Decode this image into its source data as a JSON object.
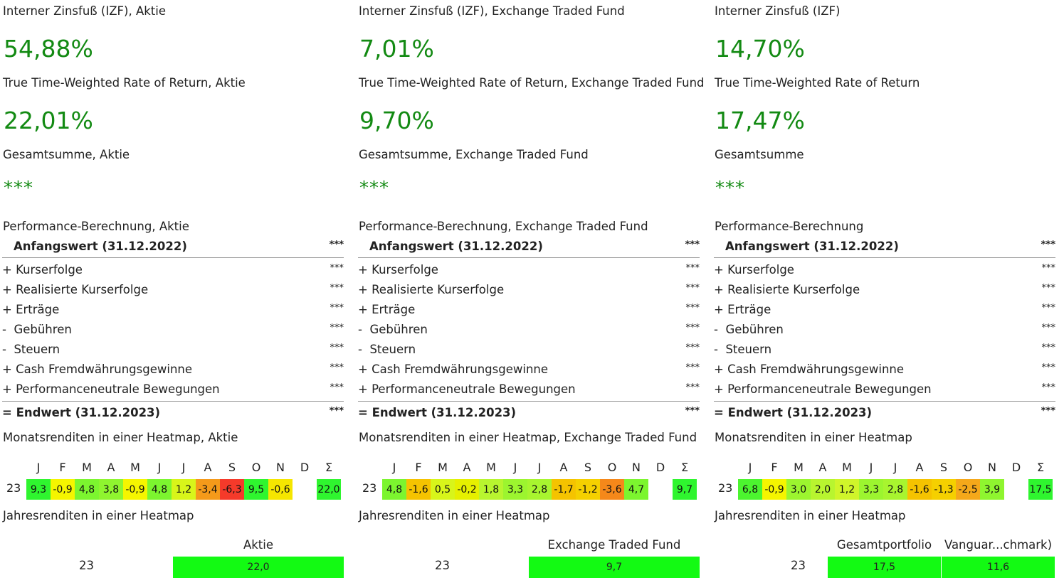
{
  "months": [
    "J",
    "F",
    "M",
    "A",
    "M",
    "J",
    "J",
    "A",
    "S",
    "O",
    "N",
    "D",
    "Σ"
  ],
  "panels": [
    {
      "irr_label": "Interner Zinsfuß (IZF), Aktie",
      "irr_value": "54,88%",
      "ttwror_label": "True Time-Weighted Rate of Return, Aktie",
      "ttwror_value": "22,01%",
      "total_label": "Gesamtsumme, Aktie",
      "total_value": "***",
      "perf_title": "Performance-Berechnung, Aktie",
      "start_label": "Anfangswert (31.12.2022)",
      "start_value": "***",
      "rows": [
        {
          "label": "+ Kurserfolge",
          "value": "***"
        },
        {
          "label": "+ Realisierte Kurserfolge",
          "value": "***"
        },
        {
          "label": "+ Erträge",
          "value": "***"
        },
        {
          "label": "-  Gebühren",
          "value": "***"
        },
        {
          "label": "-  Steuern",
          "value": "***"
        },
        {
          "label": "+ Cash Fremdwährungsgewinne",
          "value": "***"
        },
        {
          "label": "+ Performanceneutrale Bewegungen",
          "value": "***"
        }
      ],
      "end_label": "= Endwert (31.12.2023)",
      "end_value": "***",
      "heatmap_title": "Monatsrenditen in einer Heatmap, Aktie",
      "heatmap_year": "23",
      "heatmap_values": [
        "9,3",
        "-0,9",
        "4,8",
        "3,8",
        "-0,9",
        "4,8",
        "1,2",
        "-3,4",
        "-6,3",
        "9,5",
        "-0,6",
        "",
        "22,0"
      ],
      "heatmap_colors": [
        "#2ff52f",
        "#f5f500",
        "#7cf52f",
        "#8ff52f",
        "#f5f500",
        "#7cf52f",
        "#d8f51a",
        "#f59a1a",
        "#f53a2a",
        "#2ff52f",
        "#f5e600",
        "",
        "#2ff52f"
      ],
      "yearly_title": "Jahresrenditen in einer Heatmap",
      "yearly_year": "23",
      "yearly_heads": [
        "Aktie"
      ],
      "yearly_values": [
        "22,0"
      ]
    },
    {
      "irr_label": "Interner Zinsfuß (IZF), Exchange Traded Fund",
      "irr_value": "7,01%",
      "ttwror_label": "True Time-Weighted Rate of Return, Exchange Traded Fund",
      "ttwror_value": "9,70%",
      "total_label": "Gesamtsumme, Exchange Traded Fund",
      "total_value": "***",
      "perf_title": "Performance-Berechnung, Exchange Traded Fund",
      "start_label": "Anfangswert (31.12.2022)",
      "start_value": "***",
      "rows": [
        {
          "label": "+ Kurserfolge",
          "value": "***"
        },
        {
          "label": "+ Realisierte Kurserfolge",
          "value": "***"
        },
        {
          "label": "+ Erträge",
          "value": "***"
        },
        {
          "label": "-  Gebühren",
          "value": "***"
        },
        {
          "label": "-  Steuern",
          "value": "***"
        },
        {
          "label": "+ Cash Fremdwährungsgewinne",
          "value": "***"
        },
        {
          "label": "+ Performanceneutrale Bewegungen",
          "value": "***"
        }
      ],
      "end_label": "= Endwert (31.12.2023)",
      "end_value": "***",
      "heatmap_title": "Monatsrenditen in einer Heatmap, Exchange Traded Fund",
      "heatmap_year": "23",
      "heatmap_values": [
        "4,8",
        "-1,6",
        "0,5",
        "-0,2",
        "1,8",
        "3,3",
        "2,8",
        "-1,7",
        "-1,2",
        "-3,6",
        "4,7",
        "",
        "9,7"
      ],
      "heatmap_colors": [
        "#7cf52f",
        "#f5c300",
        "#d8f51a",
        "#e6f000",
        "#b8f52f",
        "#9cf52f",
        "#a8f52f",
        "#f5c300",
        "#f5d000",
        "#f5881a",
        "#7cf52f",
        "",
        "#2ff52f"
      ],
      "yearly_title": "Jahresrenditen in einer Heatmap",
      "yearly_year": "23",
      "yearly_heads": [
        "Exchange Traded Fund"
      ],
      "yearly_values": [
        "9,7"
      ]
    },
    {
      "irr_label": "Interner Zinsfuß (IZF)",
      "irr_value": "14,70%",
      "ttwror_label": "True Time-Weighted Rate of Return",
      "ttwror_value": "17,47%",
      "total_label": "Gesamtsumme",
      "total_value": "***",
      "perf_title": "Performance-Berechnung",
      "start_label": "Anfangswert (31.12.2022)",
      "start_value": "***",
      "rows": [
        {
          "label": "+ Kurserfolge",
          "value": "***"
        },
        {
          "label": "+ Realisierte Kurserfolge",
          "value": "***"
        },
        {
          "label": "+ Erträge",
          "value": "***"
        },
        {
          "label": "-  Gebühren",
          "value": "***"
        },
        {
          "label": "-  Steuern",
          "value": "***"
        },
        {
          "label": "+ Cash Fremdwährungsgewinne",
          "value": "***"
        },
        {
          "label": "+ Performanceneutrale Bewegungen",
          "value": "***"
        }
      ],
      "end_label": "= Endwert (31.12.2023)",
      "end_value": "***",
      "heatmap_title": "Monatsrenditen in einer Heatmap",
      "heatmap_year": "23",
      "heatmap_values": [
        "6,8",
        "-0,9",
        "3,0",
        "2,0",
        "1,2",
        "3,3",
        "2,8",
        "-1,6",
        "-1,3",
        "-2,5",
        "3,9",
        "",
        "17,5"
      ],
      "heatmap_colors": [
        "#4cf52f",
        "#f5f500",
        "#9cf52f",
        "#b8f52f",
        "#d0f52a",
        "#9cf52f",
        "#a8f52f",
        "#f5c300",
        "#f5d000",
        "#f5a81a",
        "#8ff52f",
        "",
        "#2ff52f"
      ],
      "yearly_title": "Jahresrenditen in einer Heatmap",
      "yearly_year": "23",
      "yearly_heads": [
        "Gesamtportfolio",
        "Vanguar...chmark)"
      ],
      "yearly_values": [
        "17,5",
        "11,6"
      ]
    }
  ]
}
